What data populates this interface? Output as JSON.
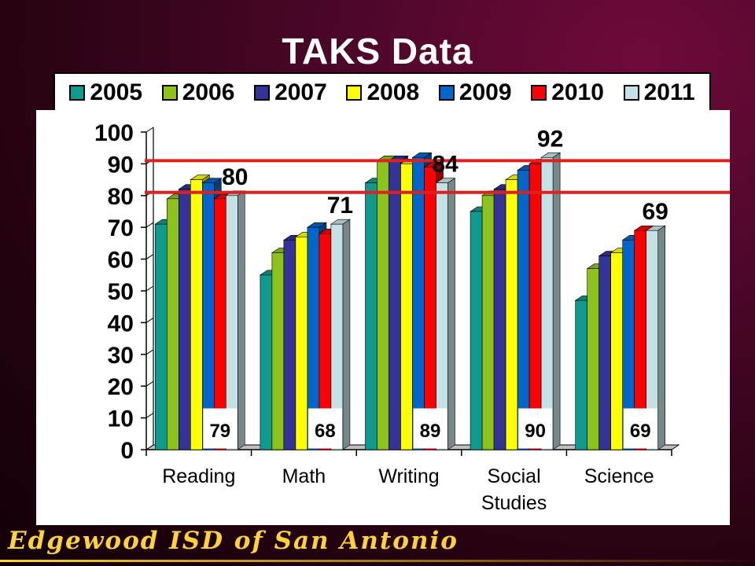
{
  "slide": {
    "title": "TAKS Data",
    "footer": "Edgewood ISD of San Antonio"
  },
  "colors": {
    "2005": "#0e9a8e",
    "2006": "#8dc21a",
    "2007": "#333399",
    "2008": "#ffff00",
    "2009": "#0066cc",
    "2010": "#ff0000",
    "2011": "#c4e2e6",
    "target_line": "#e02020",
    "footer": "#ffd23c"
  },
  "chart_data": {
    "type": "bar",
    "title": "",
    "xlabel": "",
    "ylabel": "",
    "ylim": [
      0,
      100
    ],
    "yticks": [
      "0",
      "10",
      "20",
      "30",
      "40",
      "50",
      "60",
      "70",
      "80",
      "90",
      "100"
    ],
    "categories": [
      "Reading",
      "Math",
      "Writing",
      "Social Studies",
      "Science"
    ],
    "category_labels": [
      [
        "Reading"
      ],
      [
        "Math"
      ],
      [
        "Writing"
      ],
      [
        "Social",
        "Studies"
      ],
      [
        "Science"
      ]
    ],
    "series": [
      {
        "name": "2005",
        "values": [
          71,
          55,
          84,
          75,
          47
        ]
      },
      {
        "name": "2006",
        "values": [
          79,
          62,
          91,
          80,
          57
        ]
      },
      {
        "name": "2007",
        "values": [
          82,
          66,
          91,
          82,
          61
        ]
      },
      {
        "name": "2008",
        "values": [
          85,
          67,
          90,
          85,
          62
        ]
      },
      {
        "name": "2009",
        "values": [
          84,
          70,
          92,
          88,
          66
        ]
      },
      {
        "name": "2010",
        "values": [
          79,
          68,
          89,
          90,
          69
        ]
      },
      {
        "name": "2011",
        "values": [
          80,
          71,
          84,
          92,
          69
        ]
      }
    ],
    "top_labels": [
      "80",
      "71",
      "84",
      "92",
      "69"
    ],
    "box_labels": [
      "79",
      "68",
      "89",
      "90",
      "69"
    ],
    "reference_lines": [
      81,
      91
    ],
    "legend_position": "top",
    "grid": false
  }
}
